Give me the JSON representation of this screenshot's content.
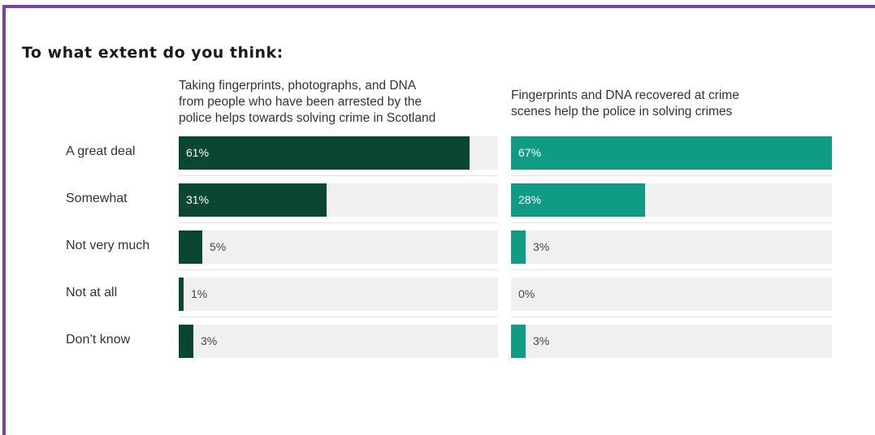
{
  "heading": "To what extent do you think:",
  "colors": {
    "frame": "#7a3fa8",
    "series1": "#0b4534",
    "series2": "#0f9b84",
    "track": "#f0f0f0"
  },
  "chart_data": {
    "type": "bar",
    "orientation": "horizontal",
    "categories": [
      "A great deal",
      "Somewhat",
      "Not very much",
      "Not at all",
      "Don’t know"
    ],
    "xlim": [
      0,
      67
    ],
    "panels": [
      {
        "title_lines": [
          "Taking fingerprints, photographs, and DNA",
          "from people who have been arrested by the",
          "police helps towards solving crime in Scotland"
        ],
        "values": [
          61,
          31,
          5,
          1,
          3
        ],
        "labels": [
          "61%",
          "31%",
          "5%",
          "1%",
          "3%"
        ],
        "color": "#0b4534"
      },
      {
        "title_lines": [
          "Fingerprints and DNA recovered at crime",
          "scenes help the police in solving crimes"
        ],
        "values": [
          67,
          28,
          3,
          0,
          3
        ],
        "labels": [
          "67%",
          "28%",
          "3%",
          "0%",
          "3%"
        ],
        "color": "#0f9b84"
      }
    ]
  }
}
